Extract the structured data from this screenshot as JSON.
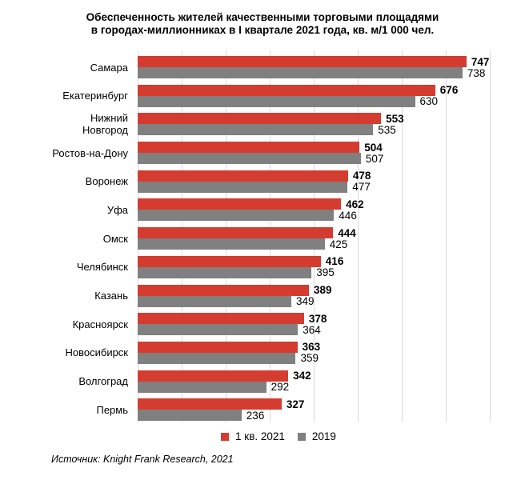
{
  "title": {
    "text": "Обеспеченность жителей качественными торговыми площадями\nв городах-миллионниках в I квартале 2021 года, кв. м/1 000 чел."
  },
  "chart_data": {
    "type": "bar",
    "orientation": "horizontal",
    "title": "Обеспеченность жителей качественными торговыми площадями в городах-миллионниках в I квартале 2021 года, кв. м/1 000 чел.",
    "categories": [
      "Самара",
      "Екатеринбург",
      "Нижний\nНовгород",
      "Ростов-на-Дону",
      "Воронеж",
      "Уфа",
      "Омск",
      "Челябинск",
      "Казань",
      "Красноярск",
      "Новосибирск",
      "Волгоград",
      "Пермь"
    ],
    "series": [
      {
        "name": "1 кв. 2021",
        "color": "#d43c30",
        "values": [
          747,
          676,
          553,
          504,
          478,
          462,
          444,
          416,
          389,
          378,
          363,
          342,
          327
        ]
      },
      {
        "name": "2019",
        "color": "#808080",
        "values": [
          738,
          630,
          535,
          507,
          477,
          446,
          425,
          395,
          349,
          364,
          359,
          292,
          236
        ]
      }
    ],
    "value_labels": true,
    "grid": true,
    "gridline_color": "#d9d9d9",
    "xaxis": {
      "min": 0,
      "max": 880,
      "tick_interval": 100,
      "tick_max": 800,
      "ticks_labeled": false
    },
    "legend_position": "bottom"
  },
  "legend": {
    "items": [
      {
        "label": "1 кв. 2021",
        "color": "#d43c30"
      },
      {
        "label": "2019",
        "color": "#808080"
      }
    ]
  },
  "source": "Источник: Knight Frank Research, 2021"
}
